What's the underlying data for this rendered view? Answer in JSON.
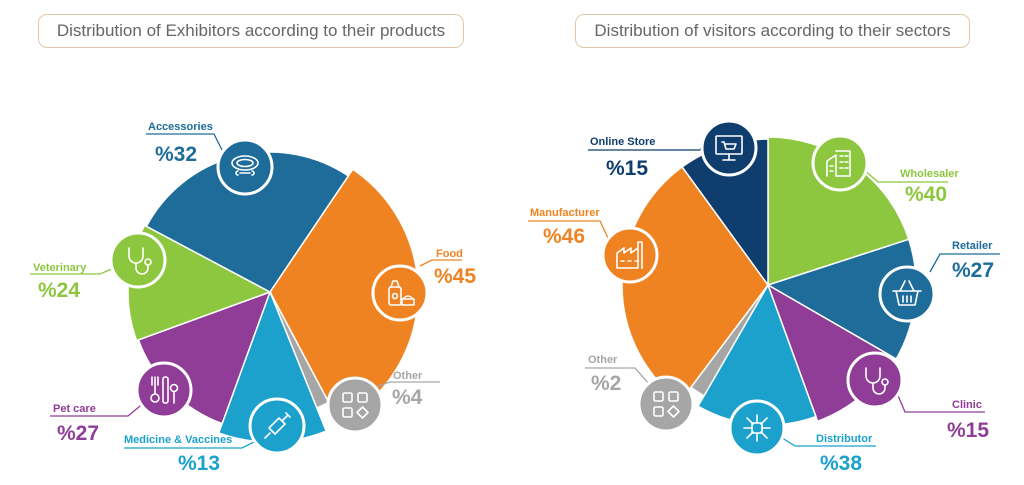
{
  "colors": {
    "orange": "#ef8321",
    "teal": "#1d6c99",
    "green": "#8dc63f",
    "purple": "#8f3d97",
    "cyan": "#1ba1cc",
    "gray": "#a6a6a6",
    "navy": "#0f3e6e"
  },
  "chart_data": [
    {
      "type": "pie",
      "title": "Distribution of Exhibitors according to their products",
      "slices": [
        {
          "label": "Food",
          "value_label": "%45",
          "value": 45,
          "color": "#ef8321",
          "icon": "pet-food-icon"
        },
        {
          "label": "Other",
          "value_label": "%4",
          "value": 4,
          "color": "#a6a6a6",
          "icon": "grid-shapes-icon"
        },
        {
          "label": "Medicine & Vaccines",
          "value_label": "%13",
          "value": 13,
          "color": "#1ba1cc",
          "icon": "syringe-icon"
        },
        {
          "label": "Pet care",
          "value_label": "%27",
          "value": 27,
          "color": "#8f3d97",
          "icon": "grooming-tools-icon"
        },
        {
          "label": "Veterinary",
          "value_label": "%24",
          "value": 24,
          "color": "#8dc63f",
          "icon": "stethoscope-icon"
        },
        {
          "label": "Accessories",
          "value_label": "%32",
          "value": 32,
          "color": "#1d6c99",
          "icon": "collar-icon"
        }
      ]
    },
    {
      "type": "pie",
      "title": "Distribution of visitors according to their sectors",
      "slices": [
        {
          "label": "Wholesaler",
          "value_label": "%40",
          "value": 40,
          "color": "#8dc63f",
          "icon": "warehouse-icon"
        },
        {
          "label": "Retailer",
          "value_label": "%27",
          "value": 27,
          "color": "#1d6c99",
          "icon": "basket-icon"
        },
        {
          "label": "Clinic",
          "value_label": "%15",
          "value": 15,
          "color": "#8f3d97",
          "icon": "stethoscope-icon"
        },
        {
          "label": "Distributor",
          "value_label": "%38",
          "value": 38,
          "color": "#1ba1cc",
          "icon": "network-icon"
        },
        {
          "label": "Other",
          "value_label": "%2",
          "value": 2,
          "color": "#a6a6a6",
          "icon": "grid-shapes-icon"
        },
        {
          "label": "Manufacturer",
          "value_label": "%46",
          "value": 46,
          "color": "#ef8321",
          "icon": "factory-icon"
        },
        {
          "label": "Online Store",
          "value_label": "%15",
          "value": 15,
          "color": "#0f3e6e",
          "icon": "online-store-icon"
        }
      ]
    }
  ]
}
